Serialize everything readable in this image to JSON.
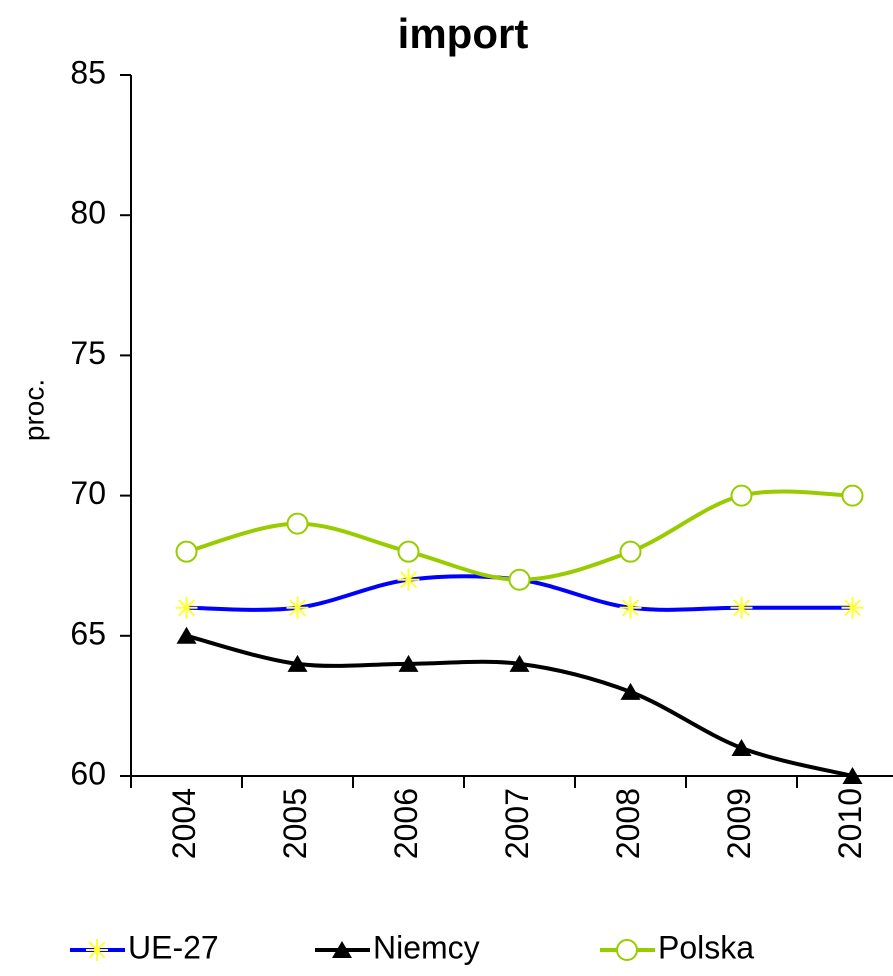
{
  "chart_data": {
    "type": "line",
    "title": "import",
    "ylabel": "proc.",
    "categories": [
      "2004",
      "2005",
      "2006",
      "2007",
      "2008",
      "2009",
      "2010"
    ],
    "series": [
      {
        "name": "UE-27",
        "color": "#0000ff",
        "marker": "asterisk",
        "marker_color": "#ffff33",
        "values": [
          66,
          66,
          67,
          67,
          66,
          66,
          66
        ]
      },
      {
        "name": "Niemcy",
        "color": "#000000",
        "marker": "triangle",
        "marker_color": "#000000",
        "values": [
          65,
          64,
          64,
          64,
          63,
          61,
          60
        ]
      },
      {
        "name": "Polska",
        "color": "#99cc00",
        "marker": "circle",
        "marker_color": "#99cc00",
        "values": [
          68,
          69,
          68,
          67,
          68,
          70,
          70
        ]
      }
    ],
    "ylim": [
      60,
      85
    ],
    "yticks": [
      60,
      65,
      70,
      75,
      80,
      85
    ],
    "smooth": true,
    "grid": false,
    "legend": "bottom"
  }
}
